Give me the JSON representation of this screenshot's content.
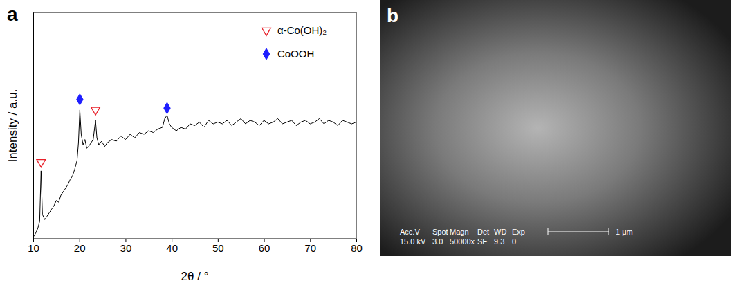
{
  "chart_data": {
    "type": "line",
    "title": "a",
    "x_label": "2θ / °",
    "y_label": "Intensity / a.u.",
    "xlim": [
      10,
      80
    ],
    "xticks": [
      10,
      20,
      30,
      40,
      50,
      60,
      70,
      80
    ],
    "ylim": [
      0,
      130
    ],
    "tick_labels": "x",
    "legend": "upper right",
    "series": [
      {
        "color": "#000000",
        "x": [
          10.0,
          10.5,
          11.0,
          11.4,
          11.7,
          12.0,
          12.5,
          13.0,
          13.5,
          14.0,
          14.5,
          15.0,
          15.5,
          16.0,
          16.5,
          17.0,
          17.5,
          18.0,
          18.5,
          19.0,
          19.5,
          19.8,
          20.1,
          20.4,
          20.8,
          21.2,
          21.6,
          22.0,
          22.5,
          23.0,
          23.5,
          23.8,
          24.2,
          24.8,
          25.5,
          26.0,
          27.0,
          28.0,
          29.0,
          30.0,
          31.0,
          32.0,
          33.0,
          34.0,
          35.0,
          36.0,
          37.0,
          38.0,
          38.5,
          39.0,
          39.5,
          40.0,
          41.0,
          42.0,
          43.0,
          44.0,
          45.0,
          46.0,
          47.0,
          48.0,
          49.0,
          50.0,
          51.0,
          52.0,
          53.0,
          54.0,
          55.0,
          56.0,
          57.0,
          58.0,
          59.0,
          60.0,
          61.0,
          62.0,
          63.0,
          64.0,
          65.0,
          66.0,
          67.0,
          68.0,
          69.0,
          70.0,
          71.0,
          72.0,
          73.0,
          74.0,
          75.0,
          76.0,
          77.0,
          78.0,
          79.0,
          80.0
        ],
        "values": [
          1,
          3,
          6,
          10,
          39,
          14,
          11,
          13,
          15,
          17,
          19,
          22,
          21,
          25,
          27,
          29,
          31,
          34,
          36,
          40,
          45,
          55,
          74,
          60,
          54,
          57,
          52,
          53,
          55,
          57,
          68,
          58,
          54,
          56,
          53,
          55,
          57,
          56,
          59,
          57,
          60,
          58,
          61,
          60,
          62,
          61,
          63,
          64,
          69,
          71,
          66,
          64,
          62,
          64,
          63,
          66,
          65,
          67,
          64,
          68,
          66,
          67,
          66,
          68,
          65,
          67,
          69,
          66,
          68,
          67,
          65,
          68,
          66,
          67,
          69,
          66,
          67,
          68,
          65,
          67,
          68,
          66,
          67,
          69,
          66,
          68,
          67,
          65,
          68,
          67,
          66,
          67
        ]
      },
      {
        "name": "α-Co(OH)₂",
        "type": "scatter",
        "color": "#e8202a",
        "marker": "triangle-down-open",
        "x": [
          11.7,
          23.5
        ],
        "values": [
          44,
          74
        ]
      },
      {
        "name": "CoOOH",
        "type": "scatter",
        "color": "#1f1fff",
        "marker": "diamond",
        "x": [
          20.1,
          39.0
        ],
        "values": [
          80,
          75
        ]
      }
    ]
  },
  "image_panel": {
    "label": "b",
    "info_headers": [
      "Acc.V",
      "Spot",
      "Magn",
      "Det",
      "WD",
      "Exp"
    ],
    "info_values": [
      "15.0 kV",
      "3.0",
      "50000x",
      "SE",
      "9.3",
      "0"
    ],
    "scale_bar": "1 μm"
  }
}
